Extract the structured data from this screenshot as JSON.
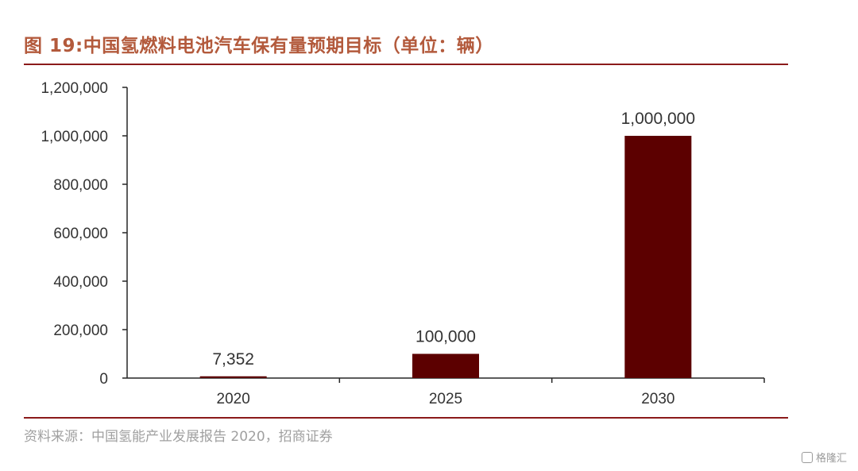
{
  "figure": {
    "title": "图 19:中国氢燃料电池汽车保有量预期目标（单位：辆）",
    "source": "资料来源：中国氢能产业发展报告 2020，招商证券"
  },
  "watermark": {
    "text": "格隆汇"
  },
  "colors": {
    "bar": "#5c0000",
    "title": "#b35a3c",
    "rule": "#8b1a1a",
    "axis": "#262626",
    "source_text": "#a0a0a0"
  },
  "chart_data": {
    "type": "bar",
    "title": "",
    "xlabel": "",
    "ylabel": "",
    "categories": [
      "2020",
      "2025",
      "2030"
    ],
    "values": [
      7352,
      100000,
      1000000
    ],
    "data_labels": [
      "7,352",
      "100,000",
      "1,000,000"
    ],
    "ylim": [
      0,
      1200000
    ],
    "yticks": [
      0,
      200000,
      400000,
      600000,
      800000,
      1000000,
      1200000
    ],
    "ytick_labels": [
      "0",
      "200,000",
      "400,000",
      "600,000",
      "800,000",
      "1,000,000",
      "1,200,000"
    ],
    "grid": false,
    "legend": "none"
  }
}
